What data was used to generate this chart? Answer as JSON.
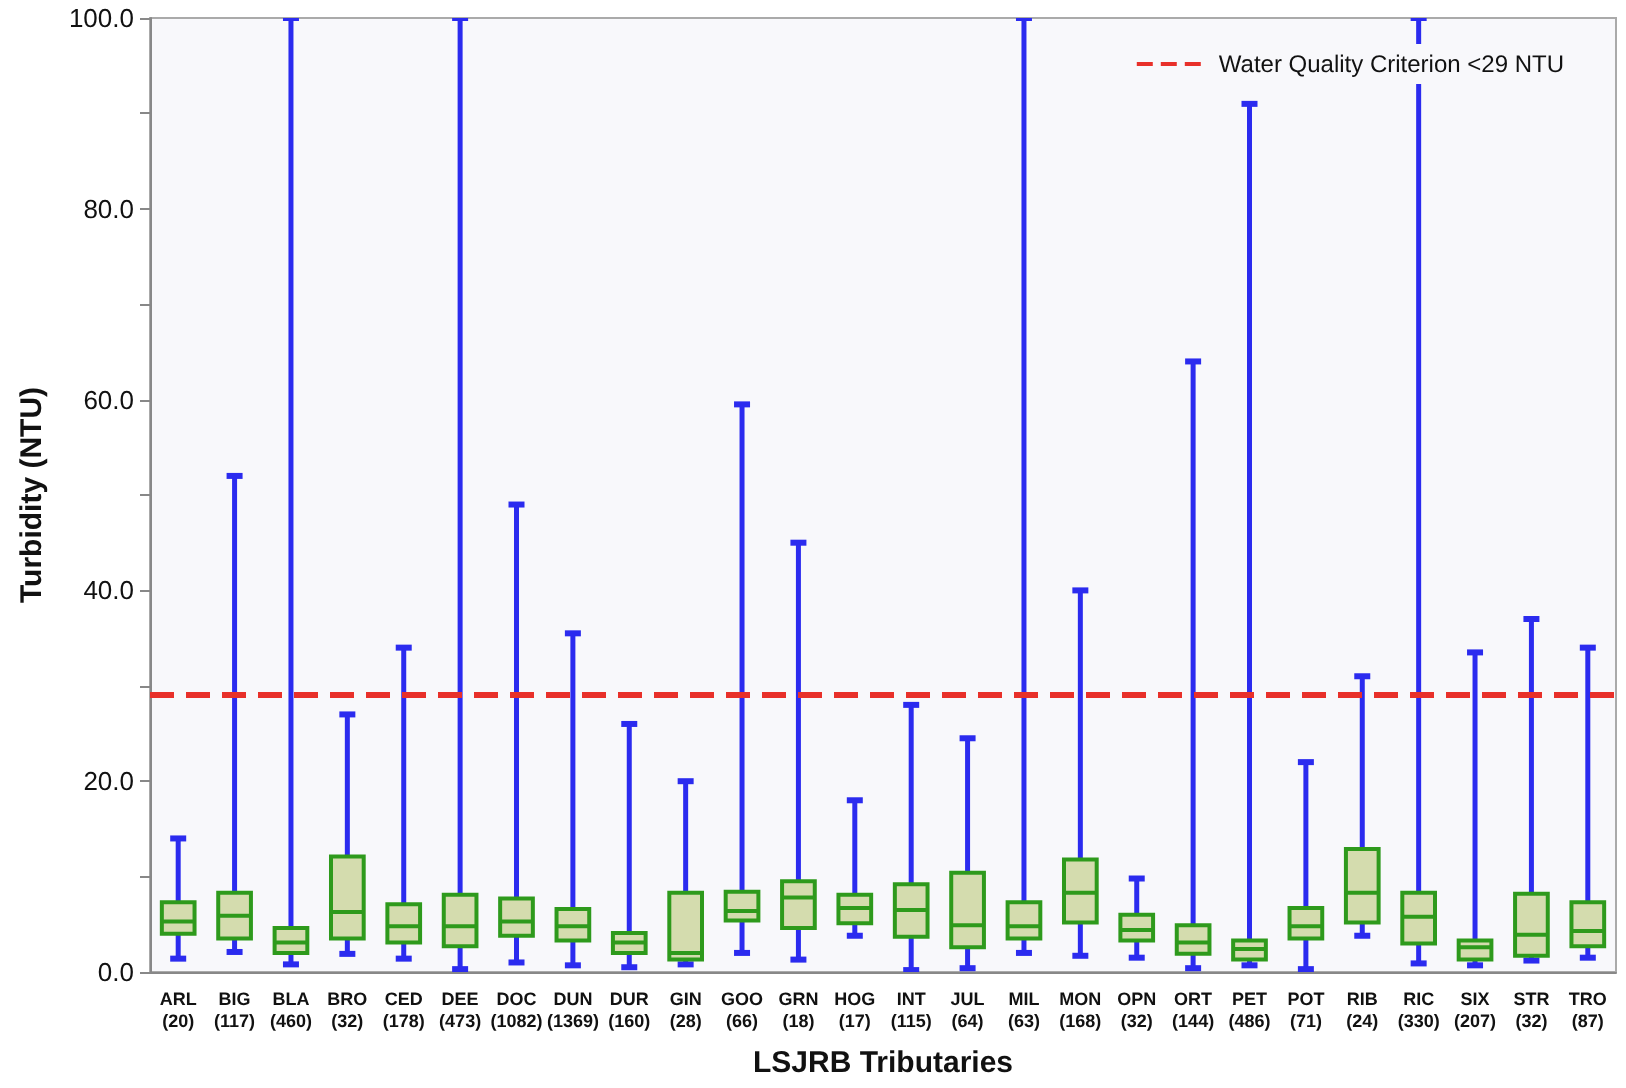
{
  "chart_data": {
    "type": "box",
    "xlabel": "LSJRB Tributaries",
    "ylabel": "Turbidity (NTU)",
    "categories": [
      "ARL\n(20)",
      "BIG\n(117)",
      "BLA\n(460)",
      "BRO\n(32)",
      "CED\n(178)",
      "DEE\n(473)",
      "DOC\n(1082)",
      "DUN\n(1369)",
      "DUR\n(160)",
      "GIN\n(28)",
      "GOO\n(66)",
      "GRN\n(18)",
      "HOG\n(17)",
      "INT\n(115)",
      "JUL\n(64)",
      "MIL\n(63)",
      "MON\n(168)",
      "OPN\n(32)",
      "ORT\n(144)",
      "PET\n(486)",
      "POT\n(71)",
      "RIB\n(24)",
      "RIC\n(330)",
      "SIX\n(207)",
      "STR\n(32)",
      "TRO\n(87)"
    ],
    "series": [
      {
        "color": "#2e9a1c",
        "boxes": [
          {
            "low": 1.4,
            "q1": 4.0,
            "median": 5.3,
            "q3": 7.3,
            "high": 14
          },
          {
            "low": 2.1,
            "q1": 3.5,
            "median": 5.9,
            "q3": 8.3,
            "high": 52
          },
          {
            "low": 0.8,
            "q1": 2.0,
            "median": 3.1,
            "q3": 4.6,
            "high": 100
          },
          {
            "low": 1.9,
            "q1": 3.5,
            "median": 6.3,
            "q3": 12.1,
            "high": 27
          },
          {
            "low": 1.4,
            "q1": 3.1,
            "median": 4.8,
            "q3": 7.1,
            "high": 34
          },
          {
            "low": 0.3,
            "q1": 2.7,
            "median": 4.8,
            "q3": 8.1,
            "high": 100
          },
          {
            "low": 1.0,
            "q1": 3.8,
            "median": 5.3,
            "q3": 7.7,
            "high": 49
          },
          {
            "low": 0.7,
            "q1": 3.3,
            "median": 4.8,
            "q3": 6.6,
            "high": 35.5
          },
          {
            "low": 0.5,
            "q1": 2.0,
            "median": 3.1,
            "q3": 4.1,
            "high": 26
          },
          {
            "low": 0.8,
            "q1": 1.3,
            "median": 2.0,
            "q3": 8.3,
            "high": 20
          },
          {
            "low": 2.0,
            "q1": 5.4,
            "median": 6.4,
            "q3": 8.4,
            "high": 59.5
          },
          {
            "low": 1.3,
            "q1": 4.6,
            "median": 7.8,
            "q3": 9.5,
            "high": 45
          },
          {
            "low": 3.8,
            "q1": 5.1,
            "median": 6.7,
            "q3": 8.1,
            "high": 18
          },
          {
            "low": 0.2,
            "q1": 3.7,
            "median": 6.5,
            "q3": 9.2,
            "high": 28
          },
          {
            "low": 0.4,
            "q1": 2.6,
            "median": 4.9,
            "q3": 10.4,
            "high": 24.5
          },
          {
            "low": 2.0,
            "q1": 3.5,
            "median": 4.8,
            "q3": 7.3,
            "high": 100
          },
          {
            "low": 1.7,
            "q1": 5.2,
            "median": 8.3,
            "q3": 11.8,
            "high": 40
          },
          {
            "low": 1.5,
            "q1": 3.3,
            "median": 4.4,
            "q3": 6.0,
            "high": 9.8
          },
          {
            "low": 0.4,
            "q1": 1.9,
            "median": 3.1,
            "q3": 4.9,
            "high": 64
          },
          {
            "low": 0.7,
            "q1": 1.3,
            "median": 2.4,
            "q3": 3.3,
            "high": 91
          },
          {
            "low": 0.3,
            "q1": 3.5,
            "median": 4.8,
            "q3": 6.7,
            "high": 22
          },
          {
            "low": 3.8,
            "q1": 5.2,
            "median": 8.3,
            "q3": 12.9,
            "high": 31
          },
          {
            "low": 0.9,
            "q1": 3.0,
            "median": 5.8,
            "q3": 8.3,
            "high": 100
          },
          {
            "low": 0.7,
            "q1": 1.3,
            "median": 2.6,
            "q3": 3.3,
            "high": 33.5
          },
          {
            "low": 1.2,
            "q1": 1.7,
            "median": 3.9,
            "q3": 8.2,
            "high": 37
          },
          {
            "low": 1.5,
            "q1": 2.7,
            "median": 4.3,
            "q3": 7.3,
            "high": 34
          }
        ]
      }
    ],
    "ylim": [
      0,
      100
    ],
    "yticks": [
      {
        "value": 0,
        "label": "0.0"
      },
      {
        "value": 10,
        "label": null
      },
      {
        "value": 20,
        "label": "20.0"
      },
      {
        "value": 30,
        "label": null
      },
      {
        "value": 40,
        "label": "40.0"
      },
      {
        "value": 50,
        "label": null
      },
      {
        "value": 60,
        "label": "60.0"
      },
      {
        "value": 70,
        "label": null
      },
      {
        "value": 80,
        "label": "80.0"
      },
      {
        "value": 90,
        "label": null
      },
      {
        "value": 100,
        "label": "100.0"
      }
    ],
    "ref_lines": [
      {
        "axis": "y",
        "value": 29,
        "label": "Water Quality Criterion <29 NTU",
        "color": "#e8302a",
        "line_style": "dashed"
      }
    ],
    "legend": "top right",
    "grid": false
  }
}
